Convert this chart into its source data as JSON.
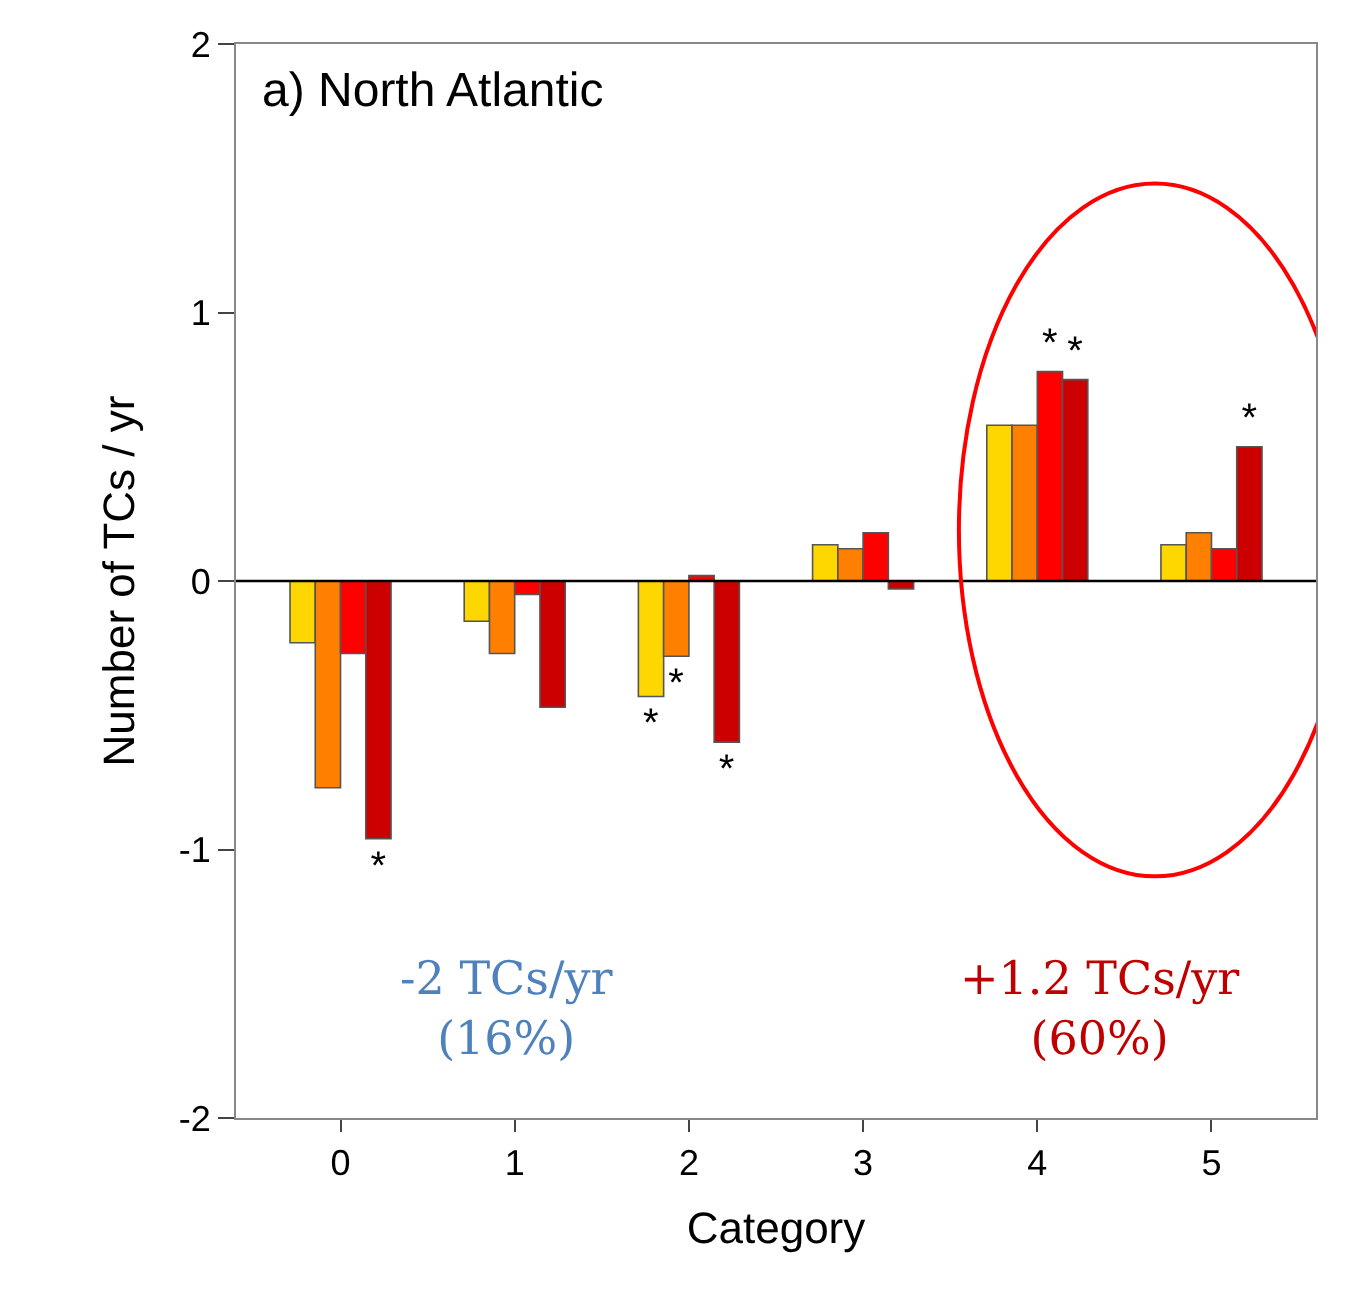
{
  "chart_data": {
    "type": "bar",
    "title": "a) North Atlantic",
    "xlabel": "Category",
    "ylabel": "Number of TCs / yr",
    "categories": [
      "0",
      "1",
      "2",
      "3",
      "4",
      "5"
    ],
    "series": [
      {
        "color": "#ffd700",
        "values": [
          -0.23,
          -0.15,
          -0.43,
          0.135,
          0.58,
          0.135
        ],
        "value_labels": [
          null,
          null,
          "*",
          null,
          null,
          null
        ]
      },
      {
        "color": "#ff8000",
        "values": [
          -0.77,
          -0.27,
          -0.28,
          0.12,
          0.58,
          0.18
        ],
        "value_labels": [
          null,
          null,
          "*",
          null,
          null,
          null
        ]
      },
      {
        "color": "#ff0000",
        "values": [
          -0.27,
          -0.05,
          0.02,
          0.18,
          0.78,
          0.12
        ],
        "value_labels": [
          null,
          null,
          null,
          null,
          "*",
          null
        ]
      },
      {
        "color": "#cc0000",
        "values": [
          -0.96,
          -0.47,
          -0.6,
          -0.03,
          0.75,
          0.5
        ],
        "value_labels": [
          "*",
          null,
          "*",
          null,
          "*",
          "*"
        ]
      }
    ],
    "ylim": [
      -2,
      2
    ],
    "yticks": [
      -2,
      -1,
      0,
      1,
      2
    ],
    "ref_lines": [
      {
        "axis": "y",
        "value": 0,
        "color": "#000000"
      }
    ],
    "annotations": [
      "-2 TCs/yr\n(16%)",
      "+1.2 TCs/yr\n(60%)"
    ]
  }
}
